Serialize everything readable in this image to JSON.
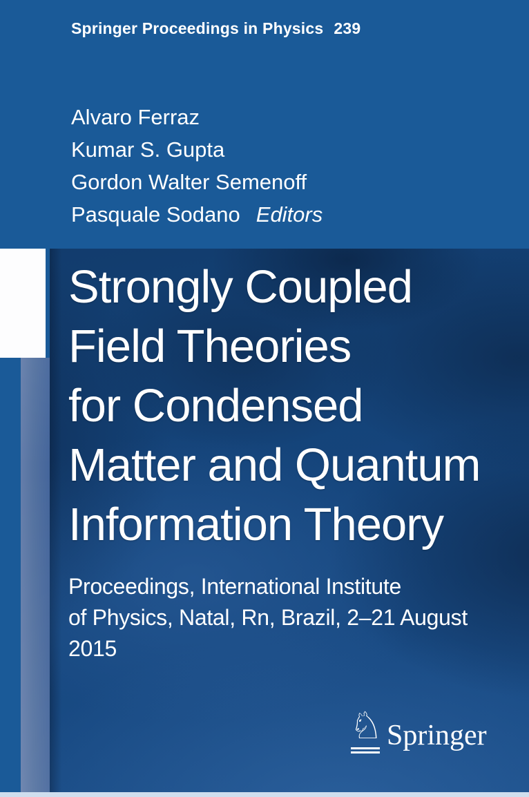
{
  "series": {
    "title": "Springer Proceedings in Physics",
    "volume": "239"
  },
  "editors": {
    "names": [
      "Alvaro Ferraz",
      "Kumar S. Gupta",
      "Gordon Walter Semenoff",
      "Pasquale Sodano"
    ],
    "role_label": "Editors"
  },
  "book": {
    "title_lines": [
      "Strongly Coupled",
      "Field Theories",
      "for Condensed",
      "Matter and Quantum",
      "Information Theory"
    ],
    "subtitle_lines": [
      "Proceedings, International Institute",
      "of Physics, Natal, Rn, Brazil, 2–21 August",
      "2015"
    ]
  },
  "publisher": {
    "name": "Springer",
    "logo_icon": "springer-knight-icon",
    "knight_glyph": "♘"
  },
  "colors": {
    "springer_blue": "#1a5a98",
    "panel_navy_dark": "#123c6d",
    "panel_blue_light": "#1c4f8a",
    "side_band_light": "#647daa",
    "side_band_dark": "#44659b",
    "white_square": "#fdfdfe",
    "bottom_strip": "#cfdeee",
    "text": "#ffffff"
  }
}
